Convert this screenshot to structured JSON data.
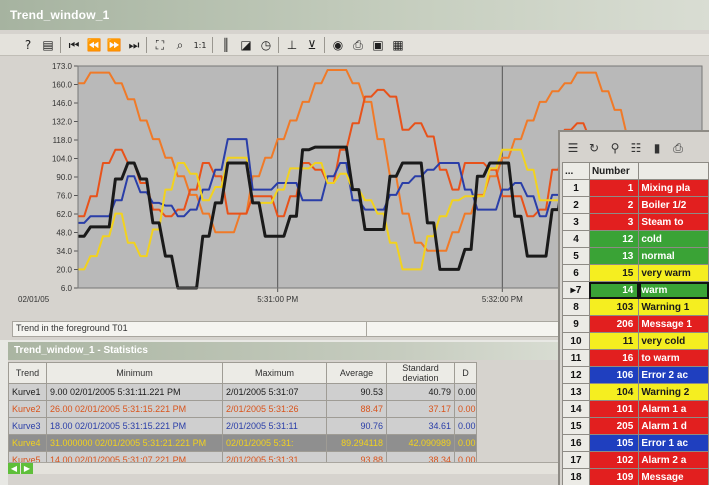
{
  "window": {
    "title": "Trend_window_1"
  },
  "toolbar": {
    "buttons": [
      {
        "icon": "help-icon",
        "glyph": "?"
      },
      {
        "icon": "config-icon",
        "glyph": "▤"
      },
      {
        "icon": "first-icon",
        "glyph": "⏮"
      },
      {
        "icon": "rewind-icon",
        "glyph": "⏪"
      },
      {
        "icon": "forward-icon",
        "glyph": "⏩"
      },
      {
        "icon": "last-icon",
        "glyph": "⏭"
      },
      {
        "icon": "zoom-area-icon",
        "glyph": "⛶"
      },
      {
        "icon": "zoom-icon",
        "glyph": "⌕"
      },
      {
        "icon": "original-view-icon",
        "glyph": "1:1"
      },
      {
        "icon": "ruler-icon",
        "glyph": "║"
      },
      {
        "icon": "select-data-icon",
        "glyph": "◪"
      },
      {
        "icon": "timer-icon",
        "glyph": "◷"
      },
      {
        "icon": "statistic-range-icon",
        "glyph": "⊥"
      },
      {
        "icon": "statistic-icon",
        "glyph": "⊻"
      },
      {
        "icon": "connect-icon",
        "glyph": "◉"
      },
      {
        "icon": "print-icon",
        "glyph": "⎙"
      },
      {
        "icon": "export-icon",
        "glyph": "▣"
      },
      {
        "icon": "settings-icon",
        "glyph": "▦"
      }
    ]
  },
  "chart_data": {
    "type": "line",
    "y_ticks": [
      "173.0",
      "160.0",
      "146.0",
      "132.0",
      "118.0",
      "104.0",
      "90.0",
      "76.0",
      "62.0",
      "48.0",
      "34.0",
      "20.0",
      "6.0"
    ],
    "ylim": [
      6.0,
      173.0
    ],
    "x_ticks": [
      "02/01/05",
      "5:31:00 PM",
      "5:32:00 PM"
    ],
    "x": [
      0,
      1,
      2,
      3,
      4,
      5,
      6,
      7,
      8,
      9,
      10,
      11,
      12,
      13,
      14,
      15,
      16,
      17,
      18,
      19,
      20,
      21,
      22,
      23,
      24,
      25,
      26,
      27,
      28,
      29,
      30,
      31,
      32,
      33,
      34,
      35,
      36,
      37,
      38,
      39,
      40,
      41,
      42,
      43,
      44,
      45,
      46,
      47,
      48,
      49,
      50
    ],
    "series": [
      {
        "name": "Kurve1",
        "color": "#1a1a1a",
        "values": [
          45,
          52,
          52,
          88,
          100,
          88,
          55,
          30,
          6,
          6,
          45,
          70,
          100,
          100,
          70,
          45,
          45,
          60,
          110,
          112,
          112,
          112,
          80,
          50,
          50,
          90,
          100,
          100,
          55,
          20,
          20,
          35,
          90,
          100,
          100,
          60,
          30,
          30,
          65,
          100,
          100,
          100,
          65,
          110,
          112,
          112,
          100,
          40,
          40,
          70,
          100
        ]
      },
      {
        "name": "Kurve2",
        "color": "#e8521a",
        "values": [
          60,
          75,
          100,
          110,
          100,
          85,
          65,
          60,
          65,
          80,
          100,
          90,
          62,
          62,
          75,
          75,
          60,
          75,
          100,
          95,
          85,
          110,
          130,
          150,
          155,
          150,
          125,
          130,
          120,
          95,
          80,
          100,
          100,
          95,
          75,
          75,
          60,
          65,
          95,
          125,
          130,
          118,
          100,
          95,
          80,
          75,
          60,
          75,
          85,
          100,
          100
        ]
      },
      {
        "name": "Kurve3",
        "color": "#2a3ea8",
        "values": [
          55,
          60,
          60,
          72,
          90,
          78,
          70,
          68,
          60,
          65,
          80,
          95,
          118,
          118,
          80,
          80,
          85,
          85,
          72,
          72,
          90,
          100,
          72,
          65,
          65,
          76,
          85,
          90,
          95,
          100,
          100,
          80,
          65,
          65,
          80,
          85,
          75,
          60,
          76,
          80,
          82,
          95,
          100,
          75,
          62,
          62,
          60,
          85,
          95,
          90,
          85
        ]
      },
      {
        "name": "Kurve4",
        "color": "#f2d21e",
        "values": [
          20,
          30,
          45,
          62,
          40,
          30,
          50,
          80,
          100,
          92,
          72,
          82,
          104,
          104,
          70,
          70,
          80,
          96,
          96,
          100,
          85,
          92,
          80,
          72,
          62,
          40,
          20,
          20,
          45,
          60,
          72,
          75,
          75,
          96,
          110,
          110,
          95,
          72,
          72,
          92,
          80,
          62,
          40,
          20,
          20,
          45,
          62,
          82,
          92,
          90,
          85
        ]
      },
      {
        "name": "Kurve5",
        "color": "#f07a28",
        "values": [
          160,
          168,
          168,
          160,
          148,
          132,
          118,
          104,
          90,
          76,
          62,
          48,
          48,
          62,
          90,
          104,
          118,
          132,
          146,
          160,
          170,
          170,
          160,
          146,
          118,
          90,
          62,
          40,
          34,
          34,
          48,
          62,
          76,
          90,
          104,
          118,
          132,
          146,
          154,
          160,
          168,
          168,
          154,
          140,
          120,
          104,
          90,
          76,
          70,
          62,
          62
        ]
      }
    ]
  },
  "status": {
    "text": "Trend in the foreground T01"
  },
  "stats": {
    "title": "Trend_window_1 - Statistics",
    "columns": [
      "Trend",
      "Minimum",
      "Maximum",
      "Average",
      "Standard deviation",
      "D"
    ],
    "rows": [
      {
        "trend": "Kurve1",
        "minimum": "9.00 02/01/2005 5:31:11.221 PM",
        "maximum": "2/01/2005 5:31:07",
        "average": "90.53",
        "stddev": "40.79",
        "d": "0.00",
        "color": "#1a1a1a",
        "bg": "#cfcfcf"
      },
      {
        "trend": "Kurve2",
        "minimum": "26.00 02/01/2005 5:31:15.221 PM",
        "maximum": "2/01/2005 5:31:26",
        "average": "88.47",
        "stddev": "37.17",
        "d": "0.00",
        "color": "#d9541c",
        "bg": "#cfcfcf"
      },
      {
        "trend": "Kurve3",
        "minimum": "18.00 02/01/2005 5:31:15.221 PM",
        "maximum": "2/01/2005 5:31:11",
        "average": "90.76",
        "stddev": "34.61",
        "d": "0.00",
        "color": "#2a3ea8",
        "bg": "#cfcfcf"
      },
      {
        "trend": "Kurve4",
        "minimum": "31.000000 02/01/2005 5:31:21.221 PM",
        "maximum": "02/01/2005 5:31:",
        "average": "89.294118",
        "stddev": "42.090989",
        "d": "0.00",
        "color": "#f2d21e",
        "bg": "#8f8f8f"
      },
      {
        "trend": "Kurve5",
        "minimum": "14.00 02/01/2005 5:31:07.221 PM",
        "maximum": "2/01/2005 5:31:31",
        "average": "93.88",
        "stddev": "38.34",
        "d": "0.00",
        "color": "#d9541c",
        "bg": "#cfcfcf"
      }
    ]
  },
  "messages": {
    "toolbar_icons": [
      "list-icon",
      "refresh-icon",
      "filter-icon",
      "select-icon",
      "histogram-icon",
      "print-icon"
    ],
    "header_corner": "...",
    "header_number": "Number",
    "rows": [
      {
        "idx": "1",
        "number": "1",
        "text": "Mixing pla",
        "bg": "#e21f1f",
        "fg": "#ffffff"
      },
      {
        "idx": "2",
        "number": "2",
        "text": "Boiler 1/2",
        "bg": "#e21f1f",
        "fg": "#ffffff"
      },
      {
        "idx": "3",
        "number": "3",
        "text": "Steam to",
        "bg": "#e21f1f",
        "fg": "#ffffff"
      },
      {
        "idx": "4",
        "number": "12",
        "text": "cold",
        "bg": "#3aa336",
        "fg": "#ffffff"
      },
      {
        "idx": "5",
        "number": "13",
        "text": "normal",
        "bg": "#3aa336",
        "fg": "#ffffff"
      },
      {
        "idx": "6",
        "number": "15",
        "text": "very warm",
        "bg": "#f5ee20",
        "fg": "#1a1a1a"
      },
      {
        "idx": "7",
        "number": "14",
        "text": "warm",
        "bg": "#3aa336",
        "fg": "#ffffff",
        "selected": true
      },
      {
        "idx": "8",
        "number": "103",
        "text": "Warning 1",
        "bg": "#f5ee20",
        "fg": "#1a1a1a"
      },
      {
        "idx": "9",
        "number": "206",
        "text": "Message 1",
        "bg": "#e21f1f",
        "fg": "#ffffff"
      },
      {
        "idx": "10",
        "number": "11",
        "text": "very cold",
        "bg": "#f5ee20",
        "fg": "#1a1a1a"
      },
      {
        "idx": "11",
        "number": "16",
        "text": "to warm",
        "bg": "#e21f1f",
        "fg": "#ffffff"
      },
      {
        "idx": "12",
        "number": "106",
        "text": "Error 2 ac",
        "bg": "#1f3fbf",
        "fg": "#ffffff"
      },
      {
        "idx": "13",
        "number": "104",
        "text": "Warning 2",
        "bg": "#f5ee20",
        "fg": "#1a1a1a"
      },
      {
        "idx": "14",
        "number": "101",
        "text": "Alarm 1 a",
        "bg": "#e21f1f",
        "fg": "#ffffff"
      },
      {
        "idx": "15",
        "number": "205",
        "text": "Alarm 1 d",
        "bg": "#e21f1f",
        "fg": "#ffffff"
      },
      {
        "idx": "16",
        "number": "105",
        "text": "Error 1 ac",
        "bg": "#1f3fbf",
        "fg": "#ffffff"
      },
      {
        "idx": "17",
        "number": "102",
        "text": "Alarm 2 a",
        "bg": "#e21f1f",
        "fg": "#ffffff"
      },
      {
        "idx": "18",
        "number": "109",
        "text": "Message",
        "bg": "#e21f1f",
        "fg": "#ffffff"
      }
    ]
  }
}
